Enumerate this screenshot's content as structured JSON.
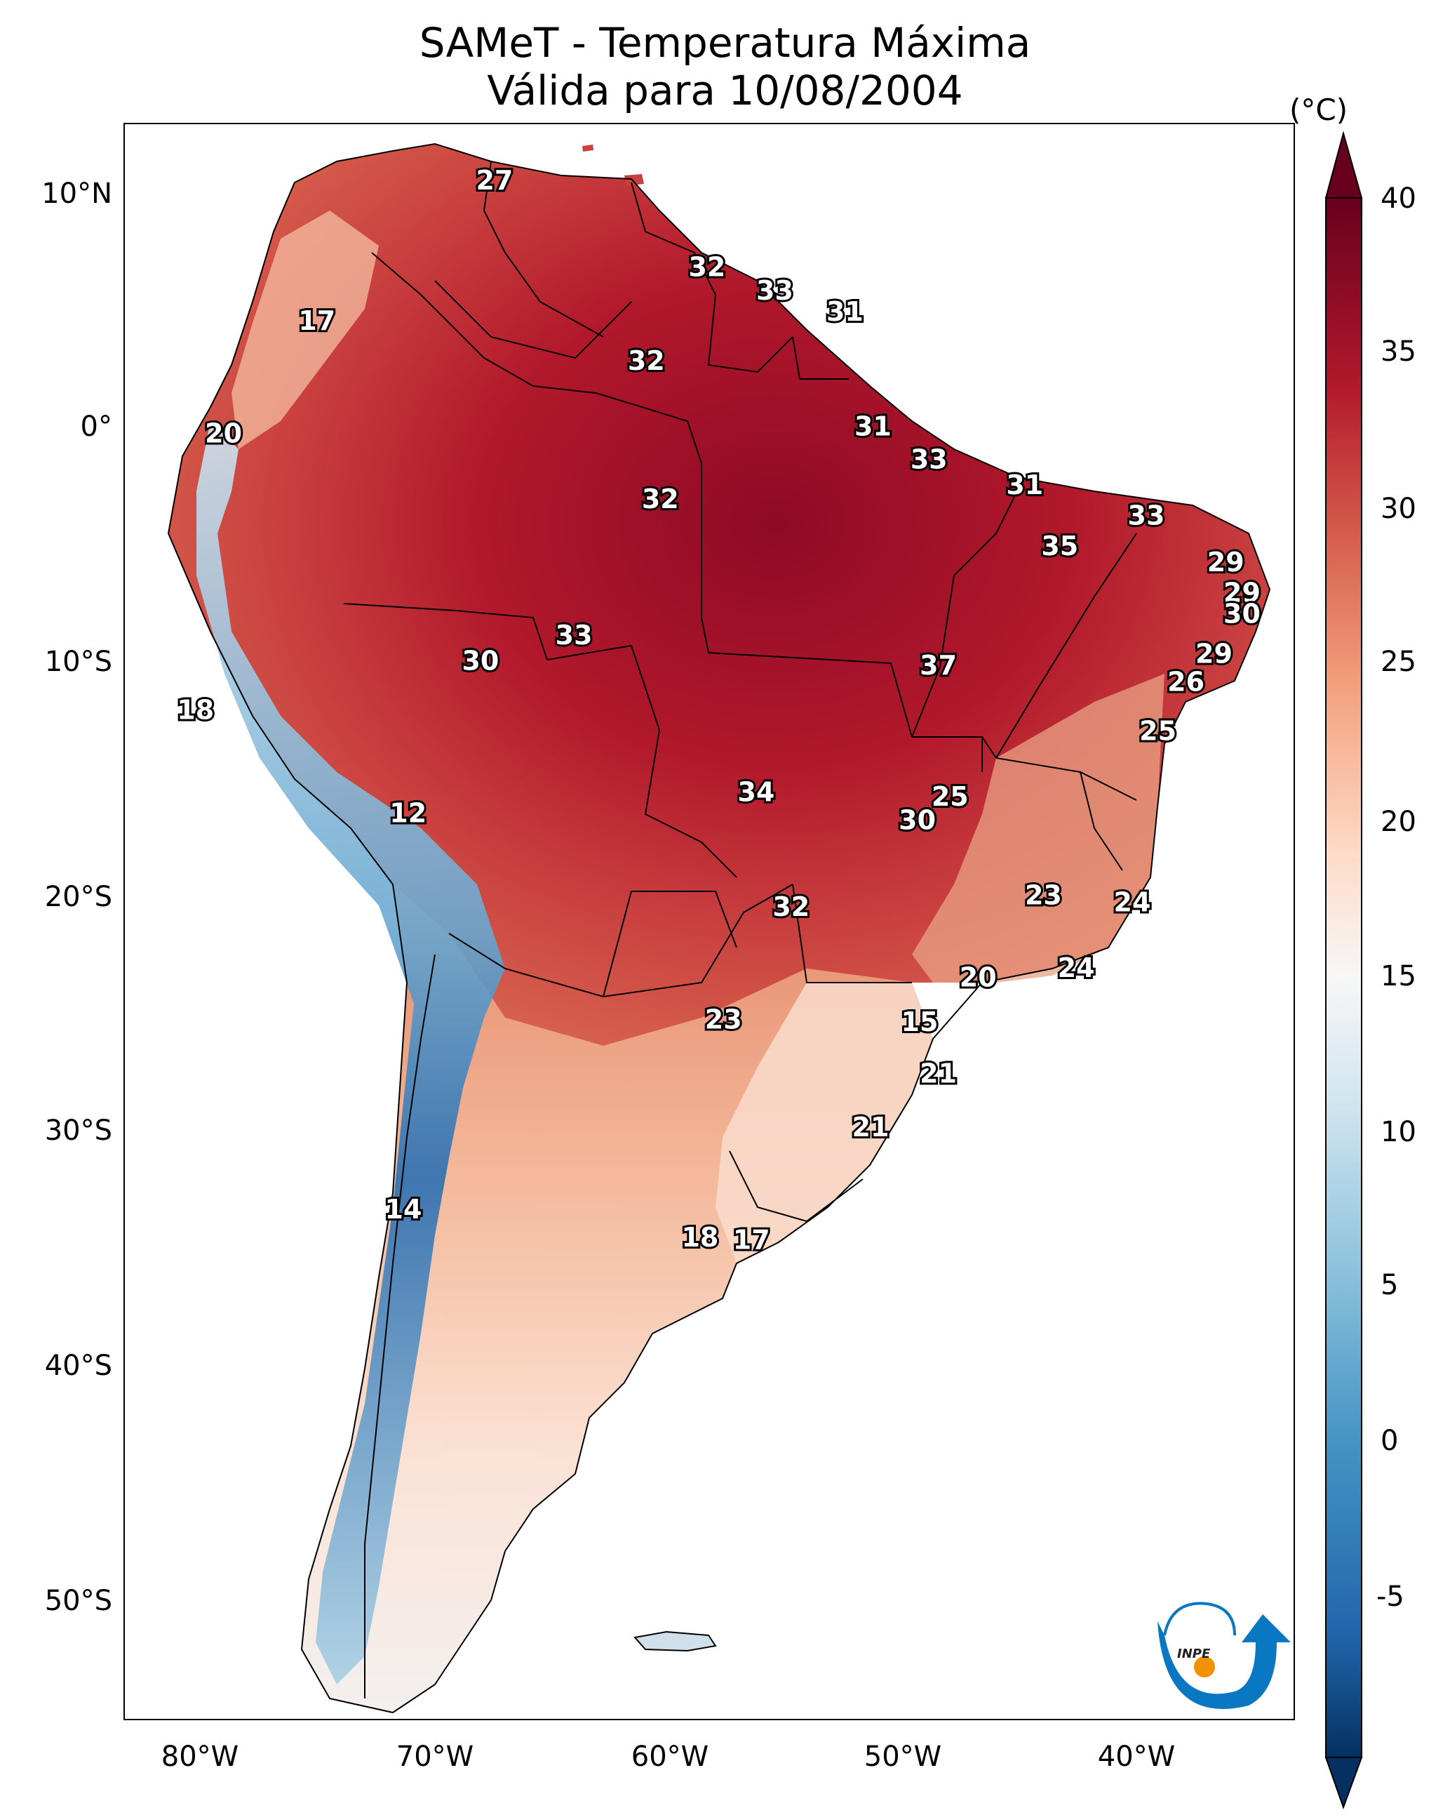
{
  "title": {
    "line1": "SAMeT - Temperatura Máxima",
    "line2": "Válida para 10/08/2004"
  },
  "colorbar": {
    "unit": "(°C)",
    "ticks": [
      "40",
      "35",
      "30",
      "25",
      "20",
      "15",
      "10",
      "5",
      "0",
      "-5"
    ],
    "range": [
      -5,
      40
    ],
    "colors": [
      "#053061",
      "#2166ac",
      "#4393c3",
      "#92c5de",
      "#d1e5f0",
      "#f7f7f7",
      "#fddbc7",
      "#f4a582",
      "#d6604d",
      "#b2182b",
      "#67001f"
    ]
  },
  "axes": {
    "lat_labels": [
      "10°N",
      "0°",
      "10°S",
      "20°S",
      "30°S",
      "40°S",
      "50°S"
    ],
    "lon_labels": [
      "80°W",
      "70°W",
      "60°W",
      "50°W",
      "40°W"
    ]
  },
  "logo": {
    "text": "INPE",
    "colors": {
      "blue": "#0a77c2",
      "orange": "#f39200"
    }
  },
  "station_labels": [
    {
      "value": "27",
      "lon": -67.0,
      "lat": 10.5
    },
    {
      "value": "17",
      "lon": -74.6,
      "lat": 4.5
    },
    {
      "value": "20",
      "lon": -78.6,
      "lat": -0.3
    },
    {
      "value": "32",
      "lon": -57.9,
      "lat": 6.8
    },
    {
      "value": "33",
      "lon": -55.0,
      "lat": 5.8
    },
    {
      "value": "31",
      "lon": -52.0,
      "lat": 4.9
    },
    {
      "value": "32",
      "lon": -60.5,
      "lat": 2.8
    },
    {
      "value": "31",
      "lon": -50.8,
      "lat": 0.0
    },
    {
      "value": "33",
      "lon": -48.4,
      "lat": -1.4
    },
    {
      "value": "32",
      "lon": -59.9,
      "lat": -3.1
    },
    {
      "value": "31",
      "lon": -44.3,
      "lat": -2.5
    },
    {
      "value": "33",
      "lon": -39.1,
      "lat": -3.8
    },
    {
      "value": "35",
      "lon": -42.8,
      "lat": -5.1
    },
    {
      "value": "29",
      "lon": -35.7,
      "lat": -5.8
    },
    {
      "value": "29",
      "lon": -35.0,
      "lat": -7.1
    },
    {
      "value": "30",
      "lon": -35.0,
      "lat": -8.0
    },
    {
      "value": "33",
      "lon": -63.6,
      "lat": -8.9
    },
    {
      "value": "30",
      "lon": -67.6,
      "lat": -10.0
    },
    {
      "value": "37",
      "lon": -48.0,
      "lat": -10.2
    },
    {
      "value": "29",
      "lon": -36.2,
      "lat": -9.7
    },
    {
      "value": "26",
      "lon": -37.4,
      "lat": -10.9
    },
    {
      "value": "18",
      "lon": -79.8,
      "lat": -12.1
    },
    {
      "value": "25",
      "lon": -38.6,
      "lat": -13.0
    },
    {
      "value": "12",
      "lon": -70.7,
      "lat": -16.5
    },
    {
      "value": "34",
      "lon": -55.8,
      "lat": -15.6
    },
    {
      "value": "25",
      "lon": -47.5,
      "lat": -15.8
    },
    {
      "value": "30",
      "lon": -48.9,
      "lat": -16.8
    },
    {
      "value": "23",
      "lon": -43.5,
      "lat": -20.0
    },
    {
      "value": "32",
      "lon": -54.3,
      "lat": -20.5
    },
    {
      "value": "24",
      "lon": -39.7,
      "lat": -20.3
    },
    {
      "value": "24",
      "lon": -42.1,
      "lat": -23.1
    },
    {
      "value": "20",
      "lon": -46.3,
      "lat": -23.5
    },
    {
      "value": "23",
      "lon": -57.2,
      "lat": -25.3
    },
    {
      "value": "15",
      "lon": -48.8,
      "lat": -25.4
    },
    {
      "value": "21",
      "lon": -48.0,
      "lat": -27.6
    },
    {
      "value": "21",
      "lon": -50.9,
      "lat": -29.9
    },
    {
      "value": "14",
      "lon": -70.9,
      "lat": -33.4
    },
    {
      "value": "18",
      "lon": -58.2,
      "lat": -34.6
    },
    {
      "value": "17",
      "lon": -56.0,
      "lat": -34.7
    }
  ]
}
